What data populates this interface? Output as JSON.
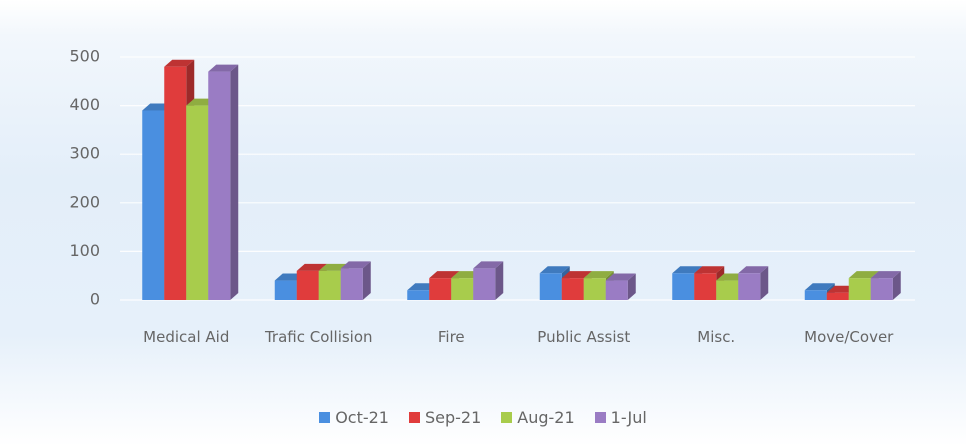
{
  "chart_data": {
    "type": "bar3d",
    "categories": [
      "Medical Aid",
      "Trafic Collision",
      "Fire",
      "Public Assist",
      "Misc.",
      "Move/Cover"
    ],
    "series": [
      {
        "name": "Oct-21",
        "color": "#4a8fe0",
        "values": [
          390,
          40,
          20,
          55,
          55,
          20
        ]
      },
      {
        "name": "Sep-21",
        "color": "#e03c3c",
        "values": [
          480,
          60,
          45,
          45,
          55,
          15
        ]
      },
      {
        "name": "Aug-21",
        "color": "#a8cc4c",
        "values": [
          400,
          60,
          45,
          45,
          40,
          45
        ]
      },
      {
        "name": "1-Jul",
        "color": "#9a7cc4",
        "values": [
          470,
          65,
          65,
          40,
          55,
          45
        ]
      }
    ],
    "ylim": [
      0,
      500
    ],
    "yticks": [
      0,
      100,
      200,
      300,
      400,
      500
    ],
    "grid": true
  }
}
